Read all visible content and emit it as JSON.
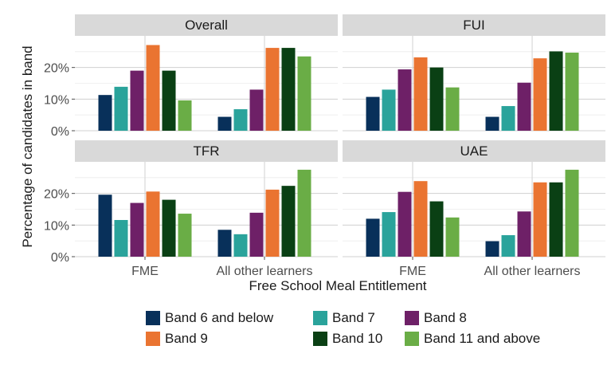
{
  "chart_data": {
    "type": "bar",
    "layout": "faceted 2x2",
    "xlabel": "Free School Meal Entitlement",
    "ylabel": "Percentage of candidates in band",
    "categories": [
      "FME",
      "All other learners"
    ],
    "ylim": [
      0,
      0.3
    ],
    "yticks": [
      0,
      0.1,
      0.2
    ],
    "ytick_labels": [
      "0%",
      "10%",
      "20%"
    ],
    "grid": true,
    "legend_position": "bottom",
    "bands": [
      {
        "name": "Band 6 and below",
        "color": "#08305a"
      },
      {
        "name": "Band 7",
        "color": "#2aa39b"
      },
      {
        "name": "Band 8",
        "color": "#6e2067"
      },
      {
        "name": "Band 9",
        "color": "#ea7431"
      },
      {
        "name": "Band 10",
        "color": "#0a4014"
      },
      {
        "name": "Band 11 and above",
        "color": "#6aad46"
      }
    ],
    "facets": [
      {
        "title": "Overall",
        "values": [
          [
            0.113,
            0.139,
            0.19,
            0.271,
            0.19,
            0.096
          ],
          [
            0.044,
            0.068,
            0.13,
            0.262,
            0.262,
            0.235
          ]
        ]
      },
      {
        "title": "FUI",
        "values": [
          [
            0.107,
            0.13,
            0.194,
            0.232,
            0.2,
            0.137
          ],
          [
            0.044,
            0.078,
            0.152,
            0.229,
            0.251,
            0.247
          ]
        ]
      },
      {
        "title": "TFR",
        "values": [
          [
            0.196,
            0.116,
            0.17,
            0.206,
            0.18,
            0.136
          ],
          [
            0.085,
            0.071,
            0.139,
            0.212,
            0.224,
            0.275
          ]
        ]
      },
      {
        "title": "UAE",
        "values": [
          [
            0.12,
            0.141,
            0.205,
            0.239,
            0.175,
            0.124
          ],
          [
            0.049,
            0.068,
            0.143,
            0.235,
            0.235,
            0.275
          ]
        ]
      }
    ]
  }
}
